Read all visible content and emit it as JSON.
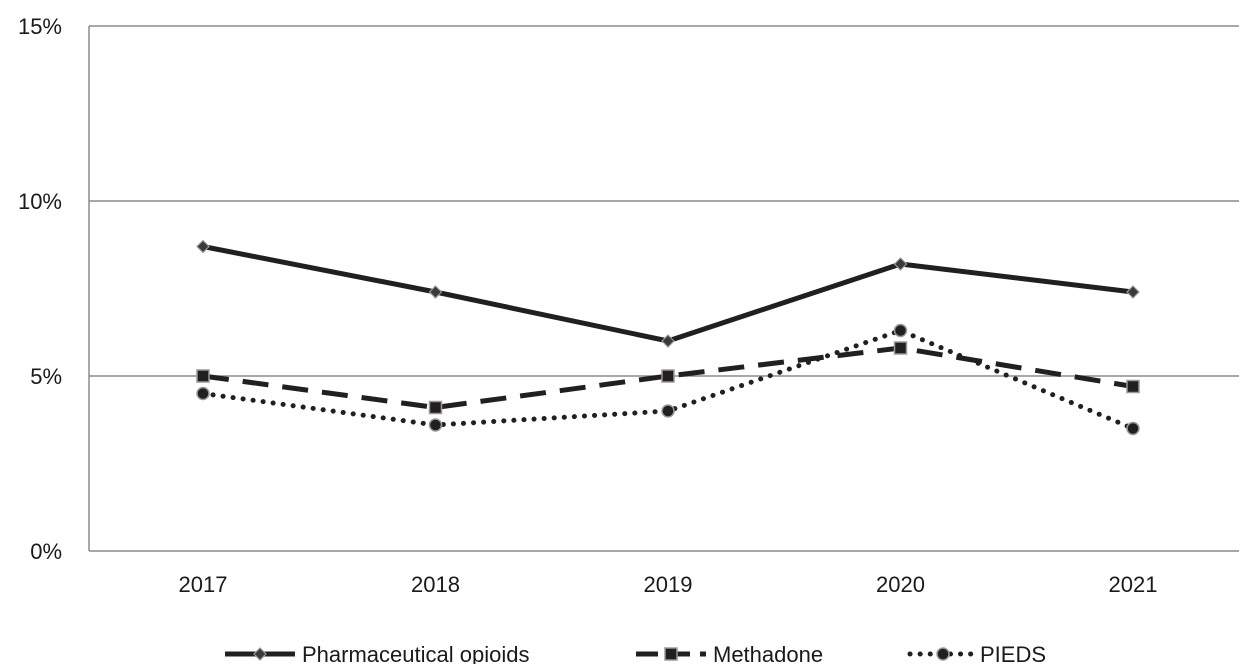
{
  "chart_data": {
    "type": "line",
    "title": "",
    "xlabel": "",
    "ylabel": "",
    "categories": [
      "2017",
      "2018",
      "2019",
      "2020",
      "2021"
    ],
    "ylim": [
      0,
      15
    ],
    "yticks": [
      0,
      5,
      10,
      15
    ],
    "ytick_labels": [
      "0%",
      "5%",
      "10%",
      "15%"
    ],
    "grid": true,
    "legend_position": "bottom",
    "series": [
      {
        "name": "Pharmaceutical opioids",
        "values": [
          8.7,
          7.4,
          6.0,
          8.2,
          7.4
        ],
        "style": "solid",
        "marker": "diamond",
        "color": "#231f20"
      },
      {
        "name": "Methadone",
        "values": [
          5.0,
          4.1,
          5.0,
          5.8,
          4.7
        ],
        "style": "dashed",
        "marker": "square",
        "color": "#231f20"
      },
      {
        "name": "PIEDS",
        "values": [
          4.5,
          3.6,
          4.0,
          6.3,
          3.5
        ],
        "style": "dotted",
        "marker": "circle",
        "color": "#231f20"
      }
    ]
  }
}
